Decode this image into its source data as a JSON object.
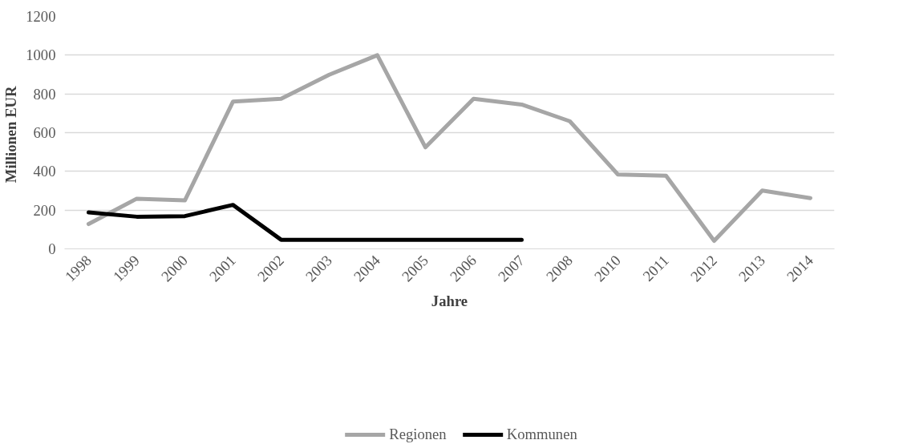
{
  "chart_data": {
    "type": "line",
    "xlabel": "Jahre",
    "ylabel": "Millionen  EUR",
    "categories": [
      "1998",
      "1999",
      "2000",
      "2001",
      "2002",
      "2003",
      "2004",
      "2005",
      "2006",
      "2007",
      "2008",
      "2010",
      "2011",
      "2012",
      "2013",
      "2014"
    ],
    "series": [
      {
        "name": "Regionen",
        "color": "#a6a6a6",
        "values": [
          128,
          259,
          250,
          760,
          775,
          899,
          1000,
          524,
          775,
          745,
          659,
          384,
          378,
          41,
          301,
          262
        ]
      },
      {
        "name": "Kommunen",
        "color": "#000000",
        "values": [
          188,
          166,
          169,
          227,
          47,
          47,
          47,
          47,
          47,
          47,
          null,
          null,
          null,
          null,
          null,
          null
        ]
      }
    ],
    "ylim": [
      0,
      1200
    ],
    "yticks": [
      0,
      200,
      400,
      600,
      800,
      1000,
      1200
    ],
    "grid": "y",
    "legend": "bottom",
    "marker": "none",
    "line_style": "solid"
  }
}
